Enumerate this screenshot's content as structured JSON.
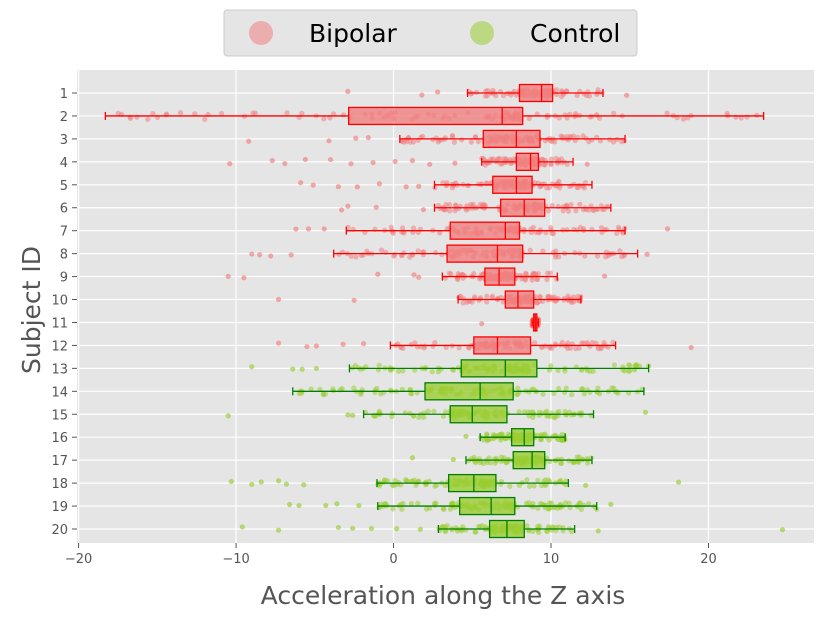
{
  "chart_data": {
    "type": "boxplot-strip",
    "orientation": "horizontal",
    "title": "",
    "xlabel": "Acceleration along the Z axis",
    "ylabel": "Subject ID",
    "xlim": [
      -20.1,
      26.7
    ],
    "xticks": [
      -20,
      -10,
      0,
      10,
      20
    ],
    "xtick_labels": [
      "−20",
      "−10",
      "0",
      "10",
      "20"
    ],
    "grid": true,
    "legend": {
      "placement": "top-center",
      "entries": [
        {
          "label": "Bipolar",
          "color": "#f08080"
        },
        {
          "label": "Control",
          "color": "#9acd32"
        }
      ]
    },
    "groups": {
      "Bipolar": {
        "box_edge": "#ff0000",
        "box_fill": "#f08080",
        "points": "#f08080"
      },
      "Control": {
        "box_edge": "#008000",
        "box_fill": "#9acd32",
        "points": "#9acd32"
      }
    },
    "subjects": [
      {
        "id": "1",
        "group": "Bipolar",
        "whislo": 4.7,
        "q1": 8.0,
        "med": 9.4,
        "q3": 10.1,
        "whishi": 13.3,
        "fliers": [
          -2.9,
          1.8,
          2.8,
          14.8
        ]
      },
      {
        "id": "2",
        "group": "Bipolar",
        "whislo": -18.3,
        "q1": -2.85,
        "med": 6.9,
        "q3": 8.2,
        "whishi": 23.5,
        "fliers": [
          12.9
        ]
      },
      {
        "id": "3",
        "group": "Bipolar",
        "whislo": 0.4,
        "q1": 5.7,
        "med": 7.8,
        "q3": 9.3,
        "whishi": 14.7,
        "fliers": [
          -9.2,
          -4.1,
          -2.4,
          -1.6
        ]
      },
      {
        "id": "4",
        "group": "Bipolar",
        "whislo": 5.6,
        "q1": 7.8,
        "med": 8.7,
        "q3": 9.2,
        "whishi": 11.4,
        "fliers": [
          -10.4,
          -7.7,
          -6.9,
          -5.6,
          -4.0,
          -2.7,
          -1.3,
          0.1,
          1.2,
          2.3,
          3.9,
          12.3
        ]
      },
      {
        "id": "5",
        "group": "Bipolar",
        "whislo": 2.6,
        "q1": 6.3,
        "med": 7.8,
        "q3": 8.8,
        "whishi": 12.6,
        "fliers": [
          -5.9,
          -5.1,
          -3.5,
          -2.3,
          -0.9,
          0.8,
          1.6
        ]
      },
      {
        "id": "6",
        "group": "Bipolar",
        "whislo": 2.6,
        "q1": 6.8,
        "med": 8.3,
        "q3": 9.6,
        "whishi": 13.8,
        "fliers": [
          -3.3,
          -2.9,
          -1.1,
          1.9
        ]
      },
      {
        "id": "7",
        "group": "Bipolar",
        "whislo": -3.0,
        "q1": 3.6,
        "med": 7.1,
        "q3": 8.0,
        "whishi": 14.7,
        "fliers": [
          -6.2,
          -5.4,
          -4.4,
          17.4
        ]
      },
      {
        "id": "8",
        "group": "Bipolar",
        "whislo": -3.8,
        "q1": 3.4,
        "med": 6.6,
        "q3": 8.2,
        "whishi": 15.5,
        "fliers": [
          -9.0,
          -8.5,
          -7.8,
          -6.5,
          16.1
        ]
      },
      {
        "id": "9",
        "group": "Bipolar",
        "whislo": 3.1,
        "q1": 5.8,
        "med": 6.7,
        "q3": 7.7,
        "whishi": 10.4,
        "fliers": [
          -10.5,
          -9.5,
          -1.0,
          1.3,
          1.6,
          13.4
        ]
      },
      {
        "id": "10",
        "group": "Bipolar",
        "whislo": 4.1,
        "q1": 7.1,
        "med": 7.9,
        "q3": 8.9,
        "whishi": 11.9,
        "fliers": [
          -7.3,
          -2.5
        ]
      },
      {
        "id": "11",
        "group": "Bipolar",
        "whislo": 8.8,
        "q1": 8.9,
        "med": 9.0,
        "q3": 9.1,
        "whishi": 9.2,
        "fliers": [
          5.6
        ]
      },
      {
        "id": "12",
        "group": "Bipolar",
        "whislo": -0.2,
        "q1": 5.1,
        "med": 6.6,
        "q3": 8.7,
        "whishi": 14.1,
        "fliers": [
          -7.3,
          -5.5,
          -4.9,
          -3.2,
          -1.9,
          18.9
        ]
      },
      {
        "id": "13",
        "group": "Control",
        "whislo": -2.8,
        "q1": 4.3,
        "med": 7.1,
        "q3": 9.1,
        "whishi": 16.2,
        "fliers": [
          -9.0,
          -6.4,
          -5.8,
          -4.9,
          15.3
        ]
      },
      {
        "id": "14",
        "group": "Control",
        "whislo": -6.4,
        "q1": 2.0,
        "med": 5.5,
        "q3": 7.6,
        "whishi": 15.9,
        "fliers": []
      },
      {
        "id": "15",
        "group": "Control",
        "whislo": -1.9,
        "q1": 3.6,
        "med": 5.0,
        "q3": 7.2,
        "whishi": 12.7,
        "fliers": [
          -10.5,
          -2.9,
          -2.6,
          16.0
        ]
      },
      {
        "id": "16",
        "group": "Control",
        "whislo": 5.5,
        "q1": 7.5,
        "med": 8.3,
        "q3": 8.9,
        "whishi": 10.9,
        "fliers": [
          4.6
        ]
      },
      {
        "id": "17",
        "group": "Control",
        "whislo": 4.6,
        "q1": 7.6,
        "med": 8.8,
        "q3": 9.6,
        "whishi": 12.6,
        "fliers": [
          1.2,
          3.8
        ]
      },
      {
        "id": "18",
        "group": "Control",
        "whislo": -1.05,
        "q1": 3.5,
        "med": 5.1,
        "q3": 6.5,
        "whishi": 11.1,
        "fliers": [
          -10.3,
          -9.0,
          -8.4,
          -7.3,
          -6.8,
          -5.7,
          12.2,
          18.1
        ]
      },
      {
        "id": "19",
        "group": "Control",
        "whislo": -1.0,
        "q1": 4.2,
        "med": 6.2,
        "q3": 7.7,
        "whishi": 12.9,
        "fliers": [
          -6.6,
          -6.0,
          -4.3,
          -3.6,
          -2.2,
          10.6,
          13.8
        ]
      },
      {
        "id": "20",
        "group": "Control",
        "whislo": 2.85,
        "q1": 6.1,
        "med": 7.2,
        "q3": 8.3,
        "whishi": 11.5,
        "fliers": [
          -9.6,
          -7.3,
          -3.5,
          -2.6,
          -1.4,
          0.2,
          1.7,
          13.0,
          24.7
        ]
      }
    ]
  }
}
